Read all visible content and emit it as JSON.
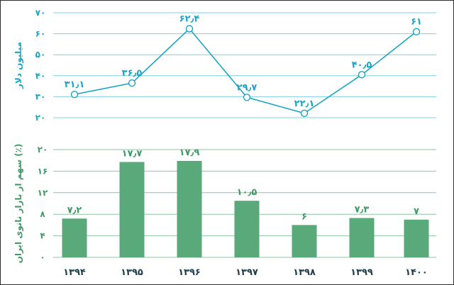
{
  "colors": {
    "line": "#1ba5c5",
    "grid": "#7fd0e3",
    "bar": "#5aa97a",
    "bar_text": "#3f9a66",
    "bar_grid": "#8cc7a3",
    "axis_text": "#1f3f4a"
  },
  "chart_data": [
    {
      "type": "line",
      "x": [
        "۱۳۹۴",
        "۱۳۹۵",
        "۱۳۹۶",
        "۱۳۹۷",
        "۱۳۹۸",
        "۱۳۹۹",
        "۱۴۰۰"
      ],
      "values": [
        31.1,
        36.5,
        62.4,
        29.7,
        22.1,
        40.5,
        61
      ],
      "value_labels": [
        "۳۱٫۱",
        "۳۶٫۵",
        "۶۲٫۴",
        "۲۹٫۷",
        "۲۲٫۱",
        "۴۰٫۵",
        "۶۱"
      ],
      "ylabel": "میلیون دلار",
      "ylim": [
        20,
        70
      ],
      "yticks": [
        20,
        30,
        40,
        50,
        60,
        70
      ],
      "ytick_labels": [
        "۲۰",
        "۳۰",
        "۴۰",
        "۵۰",
        "۶۰",
        "۷۰"
      ],
      "grid": true
    },
    {
      "type": "bar",
      "categories": [
        "۱۳۹۴",
        "۱۳۹۵",
        "۱۳۹۶",
        "۱۳۹۷",
        "۱۳۹۸",
        "۱۳۹۹",
        "۱۴۰۰"
      ],
      "values": [
        7.2,
        17.7,
        17.9,
        10.5,
        6,
        7.3,
        7
      ],
      "value_labels": [
        "۷٫۲",
        "۱۷٫۷",
        "۱۷٫۹",
        "۱۰٫۵",
        "۶",
        "۷٫۳",
        "۷"
      ],
      "ylabel": "سهم از بازار نانوی ایران (٪)",
      "ylim": [
        0,
        20
      ],
      "yticks": [
        0,
        4,
        8,
        12,
        16,
        20
      ],
      "ytick_labels": [
        "۰",
        "۴",
        "۸",
        "۱۲",
        "۱۶",
        "۲۰"
      ],
      "grid": true
    }
  ]
}
